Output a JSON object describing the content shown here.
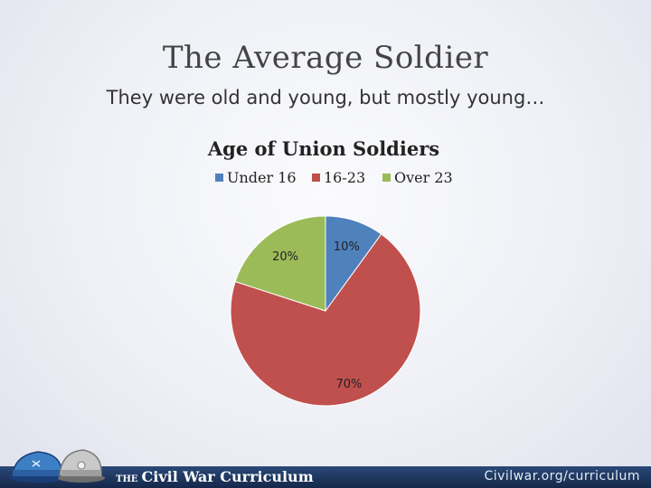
{
  "slide": {
    "title": "The Average Soldier",
    "subtitle": "They were old and young, but mostly young…"
  },
  "chart_data": {
    "type": "pie",
    "title": "Age of Union Soldiers",
    "categories": [
      "Under 16",
      "16-23",
      "Over 23"
    ],
    "values": [
      10,
      70,
      20
    ],
    "labels": [
      "10%",
      "70%",
      "20%"
    ],
    "colors": [
      "#4f81bd",
      "#c0504d",
      "#9bbb59"
    ],
    "legend": "top"
  },
  "footer": {
    "brand_prefix": "THE",
    "brand": "Civil War Curriculum",
    "url": "Civilwar.org/curriculum"
  },
  "icons": {
    "logo": "civil-war-caps-icon"
  }
}
